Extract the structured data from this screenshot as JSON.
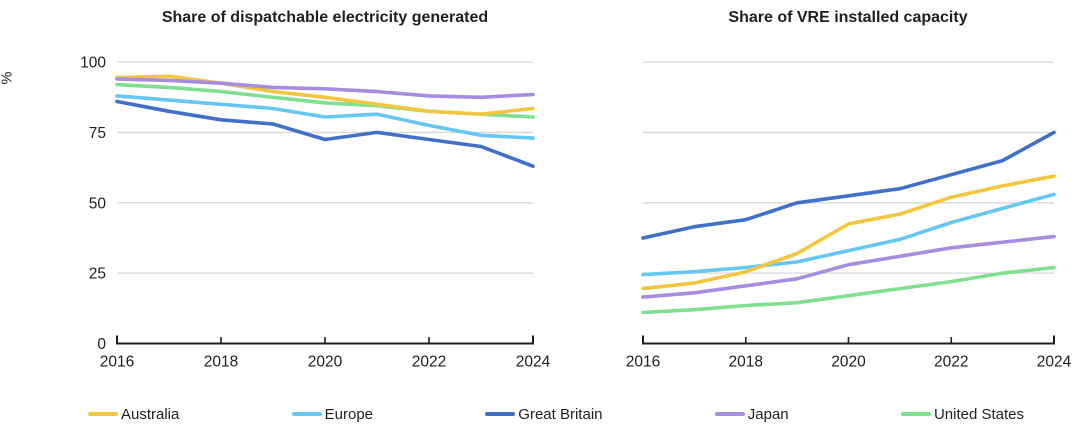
{
  "chart_data": [
    {
      "type": "line",
      "title": "Share of dispatchable electricity generated",
      "ylabel": "%",
      "xlabel": "",
      "x": [
        2016,
        2017,
        2018,
        2019,
        2020,
        2021,
        2022,
        2023,
        2024
      ],
      "xticks": [
        2016,
        2018,
        2020,
        2022,
        2024
      ],
      "yticks": [
        0,
        25,
        50,
        75,
        100
      ],
      "ylim": [
        0,
        100
      ],
      "grid": true,
      "show_ytick_labels": true,
      "legend_position": "bottom",
      "series": [
        {
          "name": "Australia",
          "color": "#F2C63F",
          "values": [
            94.5,
            95,
            92.5,
            89.5,
            87.5,
            85,
            82.5,
            81.5,
            83.5
          ]
        },
        {
          "name": "Europe",
          "color": "#66C7F2",
          "values": [
            88,
            86.5,
            85,
            83.5,
            80.5,
            81.5,
            77.5,
            74,
            73
          ]
        },
        {
          "name": "Great Britain",
          "color": "#4070C7",
          "values": [
            86,
            82.5,
            79.5,
            78,
            72.5,
            75,
            72.5,
            70,
            63
          ]
        },
        {
          "name": "Japan",
          "color": "#A78DE0",
          "values": [
            94,
            93.5,
            92.5,
            91,
            90.5,
            89.5,
            88,
            87.5,
            88.5
          ]
        },
        {
          "name": "United States",
          "color": "#7FE08F",
          "values": [
            92,
            91,
            89.5,
            87.5,
            85.5,
            84.5,
            82.5,
            81.5,
            80.5
          ]
        }
      ]
    },
    {
      "type": "line",
      "title": "Share of VRE installed capacity",
      "ylabel": "%",
      "xlabel": "",
      "x": [
        2016,
        2017,
        2018,
        2019,
        2020,
        2021,
        2022,
        2023,
        2024
      ],
      "xticks": [
        2016,
        2018,
        2020,
        2022,
        2024
      ],
      "yticks": [
        0,
        25,
        50,
        75,
        100
      ],
      "ylim": [
        0,
        100
      ],
      "grid": true,
      "show_ytick_labels": false,
      "legend_position": "bottom",
      "series": [
        {
          "name": "Australia",
          "color": "#F2C63F",
          "values": [
            19.5,
            21.5,
            25.5,
            32,
            42.5,
            46,
            52,
            56,
            59.5
          ]
        },
        {
          "name": "Europe",
          "color": "#66C7F2",
          "values": [
            24.5,
            25.5,
            27,
            29,
            33,
            37,
            43,
            48,
            53
          ]
        },
        {
          "name": "Great Britain",
          "color": "#4070C7",
          "values": [
            37.5,
            41.5,
            44,
            50,
            52.5,
            55,
            60,
            65,
            75
          ]
        },
        {
          "name": "Japan",
          "color": "#A78DE0",
          "values": [
            16.5,
            18,
            20.5,
            23,
            28,
            31,
            34,
            36,
            38
          ]
        },
        {
          "name": "United States",
          "color": "#7FE08F",
          "values": [
            11,
            12,
            13.5,
            14.5,
            17,
            19.5,
            22,
            25,
            27
          ]
        }
      ]
    }
  ]
}
